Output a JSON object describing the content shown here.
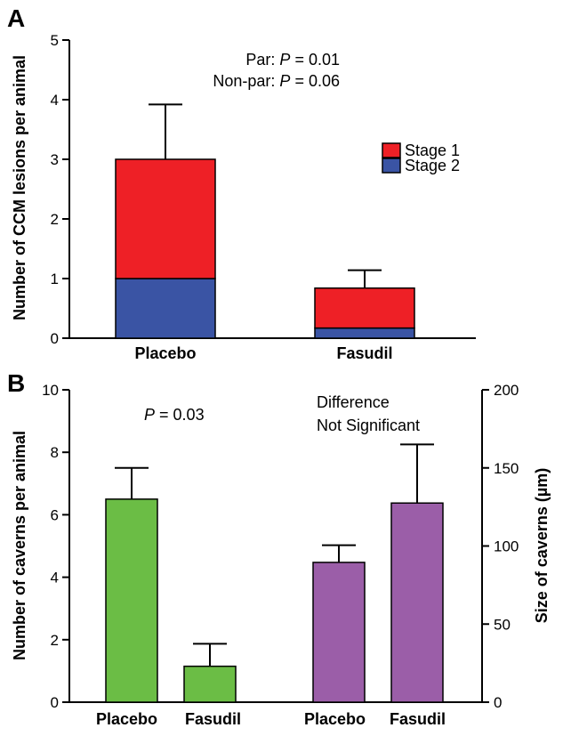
{
  "panels": {
    "a_letter": "A",
    "b_letter": "B"
  },
  "chart_data": [
    {
      "id": "A",
      "type": "bar",
      "stacked": true,
      "categories": [
        "Placebo",
        "Fasudil"
      ],
      "ylabel": "Number of CCM lesions per animal",
      "ylim": [
        0,
        5
      ],
      "yticks": [
        0,
        1,
        2,
        3,
        4,
        5
      ],
      "series": [
        {
          "name": "Stage 2",
          "values": [
            1.0,
            0.17
          ],
          "color": "#3a54a4"
        },
        {
          "name": "Stage 1",
          "values": [
            2.0,
            0.67
          ],
          "color": "#ee2026"
        }
      ],
      "totals": [
        3.0,
        0.84
      ],
      "error_upper": [
        3.92,
        1.14
      ],
      "legend": [
        "Stage 1",
        "Stage 2"
      ],
      "legend_position": "right",
      "annotations": [
        {
          "label": "Par:",
          "p_italic": "P",
          "value": "= 0.01"
        },
        {
          "label": "Non-par:",
          "p_italic": "P",
          "value": "= 0.06"
        }
      ],
      "grid": false
    },
    {
      "id": "B",
      "type": "bar",
      "dual_axis": true,
      "groups": [
        {
          "categories": [
            "Placebo",
            "Fasudil"
          ],
          "axis": "left",
          "values": [
            6.5,
            1.15
          ],
          "error_upper": [
            7.5,
            1.87
          ],
          "color": "#6bbd45",
          "annotation": {
            "p_italic": "P",
            "value": "= 0.03"
          }
        },
        {
          "categories": [
            "Placebo",
            "Fasudil"
          ],
          "axis": "right",
          "values": [
            89.5,
            127.5
          ],
          "error_upper": [
            100.5,
            165.0
          ],
          "color": "#9b5ea8",
          "annotation": {
            "lines": [
              "Difference",
              "Not Significant"
            ]
          }
        }
      ],
      "ylabel_left": "Number of caverns per animal",
      "ylabel_right": "Size of caverns (µm)",
      "ylim_left": [
        0,
        10
      ],
      "yticks_left": [
        0,
        2,
        4,
        6,
        8,
        10
      ],
      "ylim_right": [
        0,
        200
      ],
      "yticks_right": [
        0,
        50,
        100,
        150,
        200
      ],
      "grid": false
    }
  ]
}
